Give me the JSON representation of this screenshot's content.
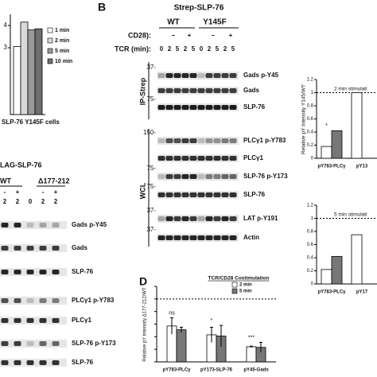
{
  "panel_a": {
    "type": "bar",
    "categories": [
      "SLP-76 Y145F cells"
    ],
    "series": [
      {
        "name": "1 min",
        "color": "#ffffff",
        "values": [
          3.05
        ]
      },
      {
        "name": "2 min",
        "color": "#d9d9d9",
        "values": [
          4.15
        ]
      },
      {
        "name": "5 min",
        "color": "#9a9a9a",
        "values": [
          3.8
        ]
      },
      {
        "name": "10 min",
        "color": "#6e6e6e",
        "values": [
          3.85
        ]
      }
    ],
    "ylim": [
      0,
      4.5
    ],
    "yticks": [
      3,
      4
    ]
  },
  "panel_lag": {
    "title": "LAG-SLP-76",
    "groups": [
      "WT",
      "Δ177-212"
    ],
    "cd28": [
      "-",
      "+",
      "-",
      "+"
    ],
    "tcr": [
      "2",
      "2",
      "0",
      "2",
      "2"
    ],
    "rows": [
      "Gads p-Y45",
      "Gads",
      "SLP-76",
      "PLCγ1 p-Y783",
      "PLCγ1",
      "SLP-76 p-Y173",
      "SLP-76"
    ]
  },
  "panel_b": {
    "letter": "B",
    "title": "Strep-SLP-76",
    "groups": [
      "WT",
      "Y145F"
    ],
    "cd28_label": "CD28):",
    "cd28": [
      "–",
      "+",
      "–",
      "+"
    ],
    "tcr_label": "TCR (min):",
    "tcr": [
      "0",
      "2",
      "5",
      "2",
      "5",
      "0",
      "2",
      "5",
      "2",
      "5"
    ],
    "sections": [
      "IP-Strep",
      "WCL"
    ],
    "rows": [
      {
        "marker": "37-",
        "label": "Gads p-Y45"
      },
      {
        "label": "Gads"
      },
      {
        "marker": "75-",
        "label": "SLP-76"
      },
      {
        "marker": "150-",
        "label": "PLCγ1 p-Y783"
      },
      {
        "label": "PLCγ1"
      },
      {
        "marker": "75-",
        "label": "SLP-76 p-Y173"
      },
      {
        "marker": "75-",
        "label": "SLP-76"
      },
      {
        "marker": "37-",
        "label": "LAT p-Y191"
      },
      {
        "marker": "37-",
        "label": "Actin"
      }
    ]
  },
  "panel_c": [
    {
      "type": "bar",
      "title": "2 min stimulati",
      "ylabel": "Relative pY Intensity Y145/WT",
      "categories": [
        "pY783-PLCγ",
        "pY13"
      ],
      "series": [
        {
          "color": "#ffffff",
          "values": [
            0.18,
            1.0
          ]
        },
        {
          "color": "#777777",
          "values": [
            0.42,
            null
          ]
        }
      ],
      "annotations": [
        "*",
        null
      ],
      "ylim": [
        0,
        1.2
      ],
      "yticks": [
        0,
        0.2,
        0.4,
        0.6,
        0.8,
        1,
        1.2
      ],
      "ref_line": 1
    },
    {
      "type": "bar",
      "title": "5 min stimulati",
      "categories": [
        "pY783-PLCγ",
        "pY17"
      ],
      "series": [
        {
          "color": "#ffffff",
          "values": [
            0.22,
            0.75
          ]
        },
        {
          "color": "#777777",
          "values": [
            0.42,
            null
          ]
        }
      ],
      "ylim": [
        0,
        1.2
      ],
      "yticks": [
        0,
        0.2,
        0.4,
        0.6,
        0.8,
        1,
        1.2
      ],
      "ref_line": 1
    }
  ],
  "panel_d": {
    "type": "bar",
    "letter": "D",
    "legend_title": "TCR/CD28 Costimulation",
    "ylabel": "Relative pY Intensity Δ177-212/WT",
    "categories": [
      "pY783-PLCγ",
      "pY173-SLP-76",
      "pY45-Gads"
    ],
    "series": [
      {
        "name": "2 min",
        "color": "#ffffff",
        "values": [
          0.57,
          0.43,
          0.24
        ],
        "errors": [
          0.13,
          0.12,
          0.01
        ]
      },
      {
        "name": "5 min",
        "color": "#777777",
        "values": [
          0.51,
          0.41,
          0.23
        ],
        "errors": [
          0.04,
          0.17,
          0.08
        ]
      }
    ],
    "annotations": [
      "ns",
      "*",
      "***"
    ],
    "ylim": [
      0,
      1.2
    ],
    "yticks": [
      0,
      0.2,
      0.4,
      0.6,
      0.8,
      1,
      1.2
    ],
    "tick_labels": false,
    "ref_line": 1
  }
}
